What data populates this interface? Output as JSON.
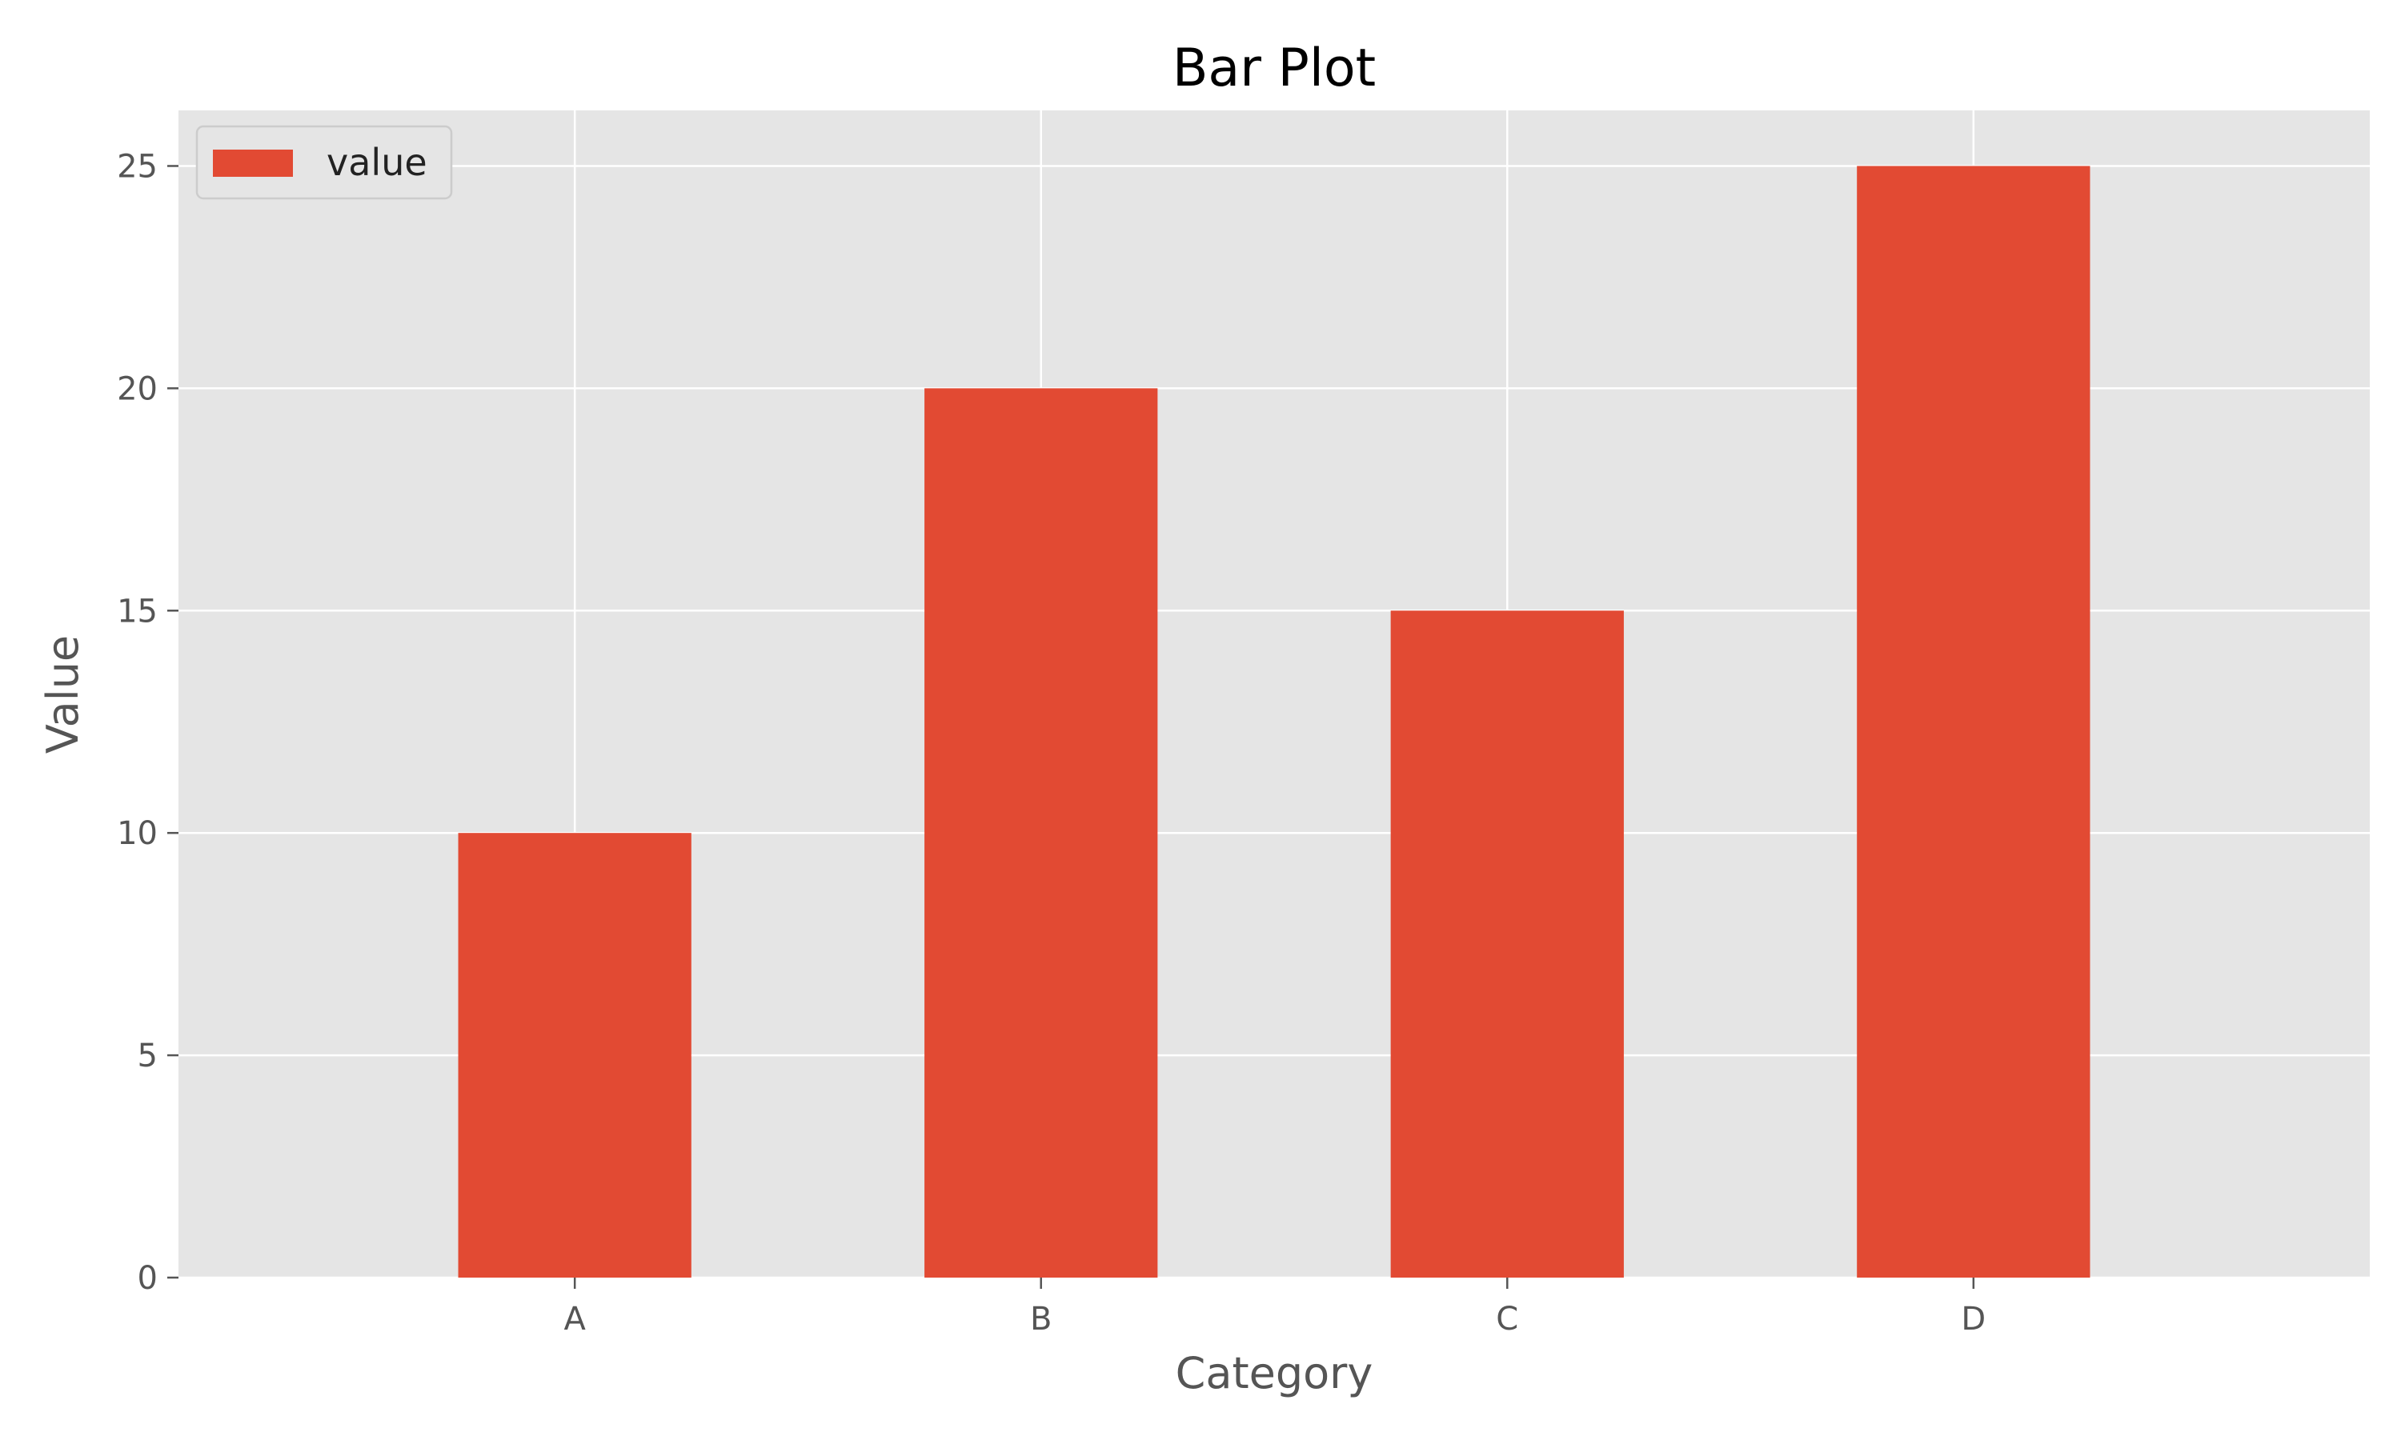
{
  "chart_data": {
    "type": "bar",
    "title": "Bar Plot",
    "xlabel": "Category",
    "ylabel": "Value",
    "categories": [
      "A",
      "B",
      "C",
      "D"
    ],
    "series": [
      {
        "name": "value",
        "values": [
          10,
          20,
          15,
          25
        ],
        "color": "#E24A33"
      }
    ],
    "ylim": [
      0,
      26.25
    ],
    "yticks": [
      0,
      5,
      10,
      15,
      20,
      25
    ],
    "grid": true,
    "legend_position": "top-left",
    "colors": {
      "plot_background": "#E5E5E5",
      "grid": "#FFFFFF",
      "bar": "#E24A33"
    }
  }
}
